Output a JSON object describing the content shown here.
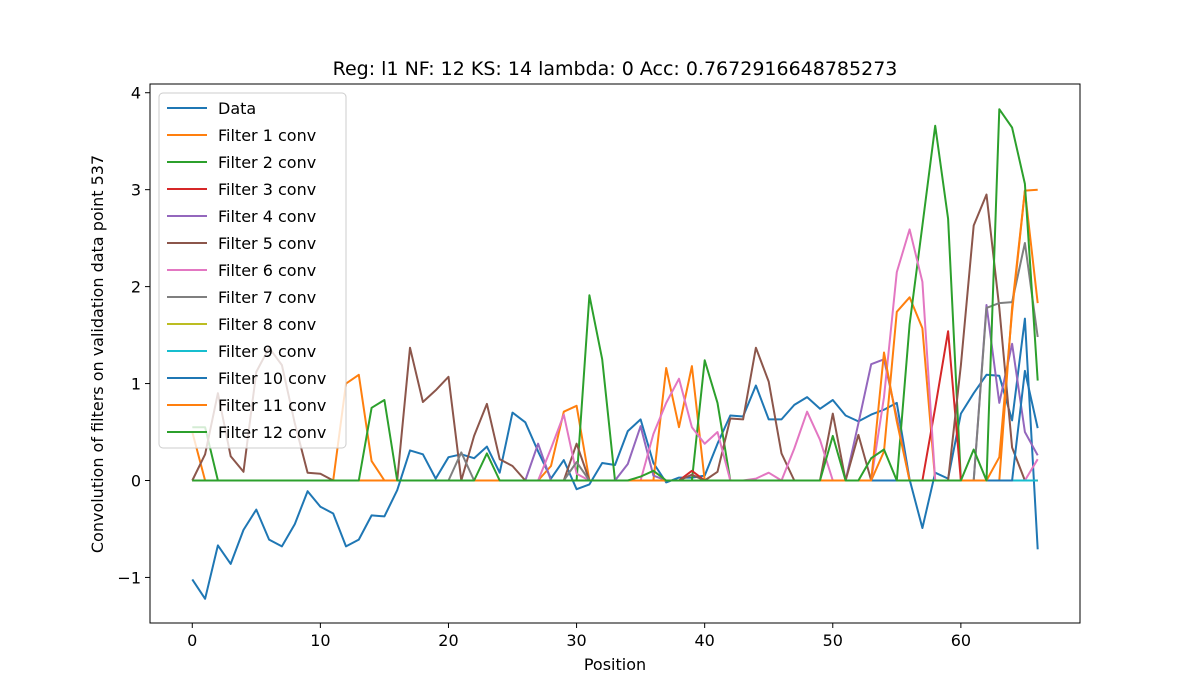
{
  "chart_data": {
    "type": "line",
    "title": "Reg: l1  NF: 12  KS: 14  lambda: 0 Acc: 0.7672916648785273",
    "xlabel": "Position",
    "ylabel": "Convolution of filters on validation data point 537",
    "xlim": [
      -3.3,
      69.3
    ],
    "ylim": [
      -1.47,
      4.09
    ],
    "xticks": [
      0,
      10,
      20,
      30,
      40,
      50,
      60
    ],
    "yticks": [
      -1,
      0,
      1,
      2,
      3,
      4
    ],
    "ytick_labels": [
      "−1",
      "0",
      "1",
      "2",
      "3",
      "4"
    ],
    "grid": false,
    "legend_position": "upper-left",
    "x": [
      0,
      1,
      2,
      3,
      4,
      5,
      6,
      7,
      8,
      9,
      10,
      11,
      12,
      13,
      14,
      15,
      16,
      17,
      18,
      19,
      20,
      21,
      22,
      23,
      24,
      25,
      26,
      27,
      28,
      29,
      30,
      31,
      32,
      33,
      34,
      35,
      36,
      37,
      38,
      39,
      40,
      41,
      42,
      43,
      44,
      45,
      46,
      47,
      48,
      49,
      50,
      51,
      52,
      53,
      54,
      55,
      56,
      57,
      58,
      59,
      60,
      61,
      62,
      63,
      64,
      65,
      66
    ],
    "series": [
      {
        "name": "Data",
        "color": "#1f77b4",
        "values": [
          -1.02,
          -1.22,
          -0.67,
          -0.86,
          -0.51,
          -0.3,
          -0.61,
          -0.68,
          -0.45,
          -0.11,
          -0.27,
          -0.34,
          -0.68,
          -0.61,
          -0.36,
          -0.37,
          -0.1,
          0.31,
          0.27,
          0.02,
          0.24,
          0.27,
          0.23,
          0.35,
          0.08,
          0.7,
          0.6,
          0.3,
          0.02,
          0.21,
          -0.09,
          -0.04,
          0.18,
          0.16,
          0.51,
          0.63,
          0.18,
          -0.02,
          0.03,
          0.03,
          0.05,
          0.38,
          0.67,
          0.66,
          0.98,
          0.63,
          0.63,
          0.78,
          0.86,
          0.74,
          0.83,
          0.67,
          0.61,
          0.68,
          0.73,
          0.8,
          0.01,
          -0.49,
          0.08,
          0.02,
          0.69,
          0.9,
          1.09,
          1.08,
          0.62,
          1.67,
          -0.71
        ]
      },
      {
        "name": "Filter 1 conv",
        "color": "#ff7f0e",
        "values": [
          0.5,
          0,
          0,
          0,
          0,
          0,
          0,
          0,
          0,
          0,
          0,
          0,
          1.0,
          1.09,
          0.2,
          0,
          0,
          0,
          0,
          0,
          0,
          0,
          0,
          0,
          0,
          0,
          0,
          0,
          0.15,
          0.71,
          0.77,
          0,
          0,
          0,
          0,
          0,
          0,
          1.16,
          0.55,
          1.18,
          0,
          0,
          0,
          0,
          0,
          0,
          0,
          0,
          0,
          0,
          0,
          0,
          0,
          0,
          0.3,
          1.74,
          1.89,
          1.57,
          0,
          0,
          0,
          0,
          0,
          0,
          1.79,
          2.99,
          3.0
        ]
      },
      {
        "name": "Filter 2 conv",
        "color": "#2ca02c",
        "values": [
          0.55,
          0.55,
          0,
          0,
          0,
          0,
          0,
          0,
          0,
          0,
          0,
          0,
          0,
          0,
          0,
          0,
          0,
          0,
          0,
          0,
          0,
          0,
          0,
          0,
          0,
          0,
          0,
          0,
          0,
          0,
          0,
          1.91,
          1.25,
          0,
          0,
          0,
          0,
          0,
          0,
          0,
          1.24,
          0.8,
          0,
          0,
          0,
          0,
          0,
          0,
          0,
          0,
          0,
          0,
          0,
          0,
          0,
          0,
          1.61,
          2.63,
          3.66,
          2.7,
          0,
          0,
          0,
          0,
          0,
          0,
          0
        ]
      },
      {
        "name": "Filter 3 conv",
        "color": "#d62728",
        "values": [
          0,
          0,
          0,
          0,
          0,
          0,
          0,
          0,
          0,
          0,
          0,
          0,
          0,
          0,
          0,
          0,
          0,
          0,
          0,
          0,
          0,
          0,
          0,
          0,
          0,
          0,
          0,
          0,
          0,
          0,
          0,
          0,
          0,
          0,
          0,
          0,
          0,
          0,
          0,
          0.1,
          0,
          0,
          0,
          0,
          0,
          0,
          0,
          0,
          0,
          0,
          0,
          0,
          0,
          0,
          0,
          0,
          0,
          0,
          0.75,
          1.54,
          0,
          0,
          0,
          0,
          0,
          0,
          0
        ]
      },
      {
        "name": "Filter 4 conv",
        "color": "#9467bd",
        "values": [
          0,
          0,
          0,
          0,
          0,
          0,
          0,
          0,
          0,
          0,
          0,
          0,
          0,
          0,
          0,
          0,
          0,
          0,
          0,
          0,
          0,
          0,
          0,
          0,
          0,
          0,
          0,
          0.38,
          0,
          0,
          0,
          0,
          0,
          0,
          0.17,
          0.56,
          0.05,
          0,
          0,
          0,
          0,
          0,
          0,
          0,
          0,
          0,
          0,
          0,
          0,
          0,
          0,
          0,
          0.59,
          1.2,
          1.25,
          0.65,
          0,
          0,
          0,
          0,
          0,
          0,
          1.81,
          0.8,
          1.41,
          0.5,
          0.26
        ]
      },
      {
        "name": "Filter 5 conv",
        "color": "#8c564b",
        "values": [
          0,
          0.27,
          0.9,
          0.25,
          0.09,
          1.12,
          1.37,
          1.19,
          0.59,
          0.08,
          0.07,
          0,
          0,
          0,
          0,
          0,
          0,
          1.37,
          0.81,
          0.93,
          1.07,
          0,
          0.46,
          0.79,
          0.22,
          0.15,
          0,
          0,
          0,
          0,
          0.38,
          0,
          0,
          0,
          0,
          0,
          0,
          0,
          0,
          0.06,
          0,
          0.09,
          0.64,
          0.63,
          1.37,
          1.02,
          0.28,
          0,
          0,
          0,
          0.69,
          0,
          0.47,
          0,
          0,
          0,
          0,
          0,
          0,
          0,
          1.19,
          2.63,
          2.95,
          1.78,
          0.34,
          0,
          0
        ]
      },
      {
        "name": "Filter 6 conv",
        "color": "#e377c2",
        "values": [
          0,
          0,
          0,
          0,
          0,
          0,
          0,
          0,
          0,
          0,
          0,
          0,
          0,
          0,
          0,
          0,
          0,
          0,
          0,
          0,
          0,
          0,
          0,
          0,
          0,
          0,
          0,
          0,
          0.33,
          0.68,
          0.07,
          0,
          0,
          0,
          0,
          0,
          0.48,
          0.8,
          1.05,
          0.55,
          0.38,
          0.5,
          0,
          0,
          0.02,
          0.08,
          0,
          0.33,
          0.71,
          0.42,
          0,
          0,
          0,
          0,
          0.86,
          2.15,
          2.59,
          2.05,
          0,
          0,
          0,
          0,
          0,
          0,
          0,
          0,
          0.22
        ]
      },
      {
        "name": "Filter 7 conv",
        "color": "#7f7f7f",
        "values": [
          0,
          0,
          0,
          0,
          0,
          0,
          0,
          0,
          0,
          0,
          0,
          0,
          0,
          0,
          0,
          0,
          0,
          0,
          0,
          0,
          0,
          0.29,
          0,
          0,
          0,
          0,
          0,
          0,
          0,
          0,
          0.19,
          0,
          0,
          0,
          0,
          0,
          0,
          0,
          0,
          0,
          0,
          0,
          0,
          0,
          0,
          0,
          0,
          0,
          0,
          0,
          0,
          0,
          0,
          0,
          0,
          0,
          0,
          0,
          0,
          0,
          0,
          0,
          1.78,
          1.83,
          1.84,
          2.45,
          1.48
        ]
      },
      {
        "name": "Filter 8 conv",
        "color": "#bcbd22",
        "values": [
          0,
          0,
          0,
          0,
          0,
          0,
          0,
          0,
          0,
          0,
          0,
          0,
          0,
          0,
          0,
          0,
          0,
          0,
          0,
          0,
          0,
          0,
          0,
          0,
          0,
          0,
          0,
          0,
          0,
          0,
          0,
          0,
          0,
          0,
          0,
          0,
          0,
          0,
          0,
          0,
          0,
          0,
          0,
          0,
          0,
          0,
          0,
          0,
          0,
          0,
          0,
          0,
          0,
          0,
          0,
          0,
          0,
          0,
          0,
          0,
          0,
          0,
          0,
          0,
          0,
          0,
          0
        ]
      },
      {
        "name": "Filter 9 conv",
        "color": "#17becf",
        "values": [
          0,
          0,
          0,
          0,
          0,
          0,
          0,
          0,
          0,
          0,
          0,
          0,
          0,
          0,
          0,
          0,
          0,
          0,
          0,
          0,
          0,
          0,
          0,
          0,
          0,
          0,
          0,
          0,
          0,
          0,
          0,
          0,
          0,
          0,
          0,
          0,
          0,
          0,
          0,
          0,
          0,
          0,
          0,
          0,
          0,
          0,
          0,
          0,
          0,
          0,
          0,
          0,
          0,
          0,
          0,
          0,
          0,
          0,
          0,
          0,
          0,
          0,
          0,
          0,
          0,
          0,
          0
        ]
      },
      {
        "name": "Filter 10 conv",
        "color": "#1f77b4",
        "values": [
          0,
          0,
          0,
          0,
          0,
          0,
          0,
          0,
          0,
          0,
          0,
          0,
          0,
          0,
          0,
          0,
          0,
          0,
          0,
          0,
          0,
          0,
          0,
          0,
          0,
          0,
          0,
          0,
          0,
          0,
          0,
          0,
          0,
          0,
          0,
          0,
          0,
          0,
          0,
          0,
          0,
          0,
          0,
          0,
          0,
          0,
          0,
          0,
          0,
          0,
          0,
          0,
          0,
          0,
          0,
          0,
          0,
          0,
          0,
          0,
          0,
          0,
          0,
          0,
          0,
          1.13,
          0.54
        ]
      },
      {
        "name": "Filter 11 conv",
        "color": "#ff7f0e",
        "values": [
          0,
          0,
          0,
          0,
          0,
          0,
          0,
          0,
          0,
          0,
          0,
          0,
          0,
          0,
          0,
          0,
          0,
          0,
          0,
          0,
          0,
          0,
          0,
          0,
          0,
          0,
          0,
          0,
          0,
          0,
          0,
          0,
          0,
          0,
          0,
          0,
          0,
          0,
          0,
          0,
          0,
          0,
          0,
          0,
          0,
          0,
          0,
          0,
          0,
          0,
          0,
          0,
          0,
          0,
          1.32,
          0.61,
          0,
          0,
          0,
          0,
          0,
          0,
          0,
          0.24,
          1.74,
          2.99,
          1.83
        ]
      },
      {
        "name": "Filter 12 conv",
        "color": "#2ca02c",
        "values": [
          0,
          0,
          0,
          0,
          0,
          0,
          0,
          0,
          0,
          0,
          0,
          0,
          0,
          0,
          0.75,
          0.83,
          0,
          0,
          0,
          0,
          0,
          0,
          0,
          0.28,
          0,
          0,
          0,
          0,
          0,
          0,
          0,
          0,
          0,
          0,
          0,
          0.04,
          0.1,
          0,
          0,
          0,
          0,
          0,
          0,
          0,
          0,
          0,
          0,
          0,
          0,
          0,
          0.46,
          0,
          0,
          0.23,
          0.32,
          0,
          0,
          0,
          0,
          0,
          0,
          0.32,
          0,
          3.83,
          3.64,
          3.06,
          1.03
        ]
      }
    ]
  }
}
